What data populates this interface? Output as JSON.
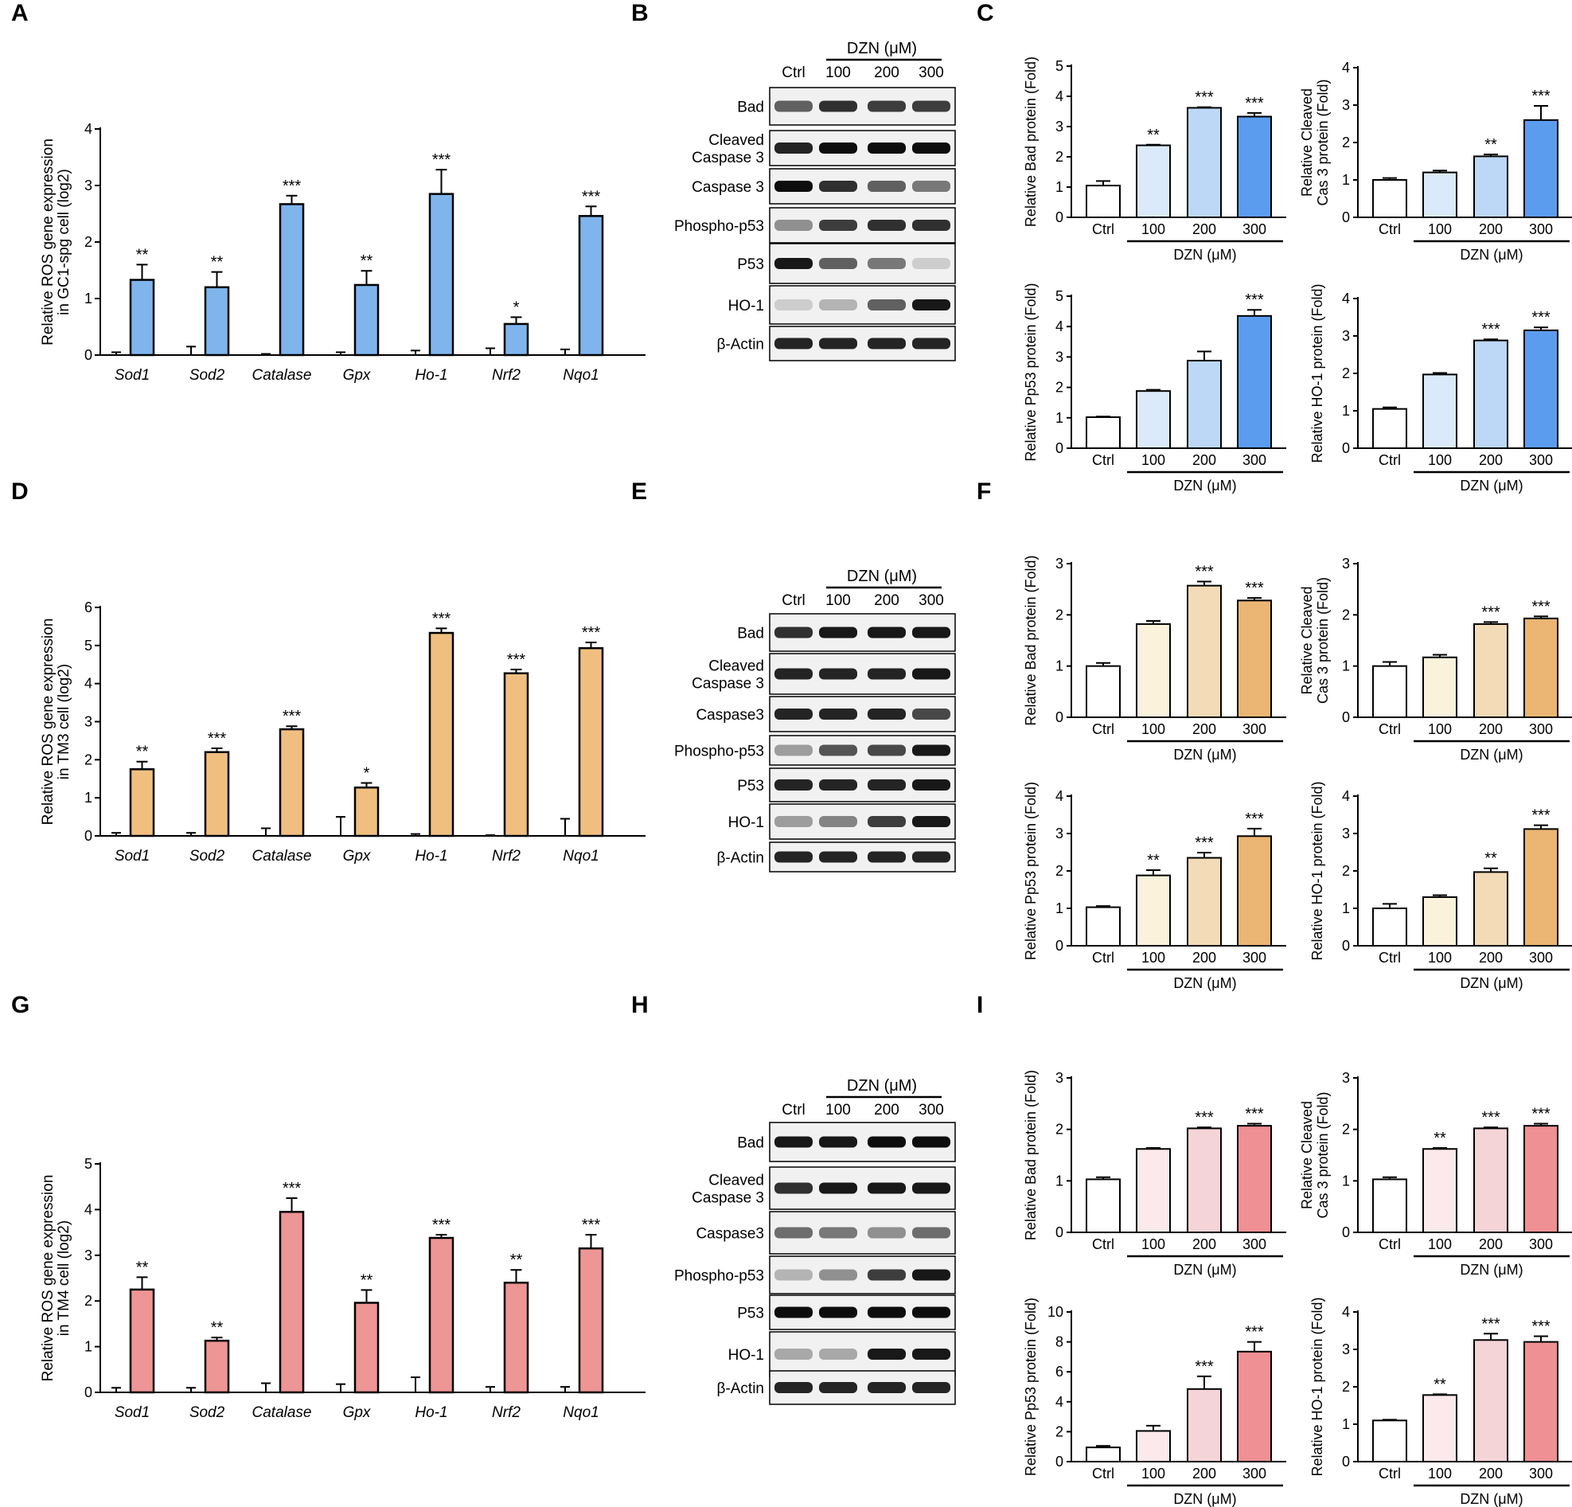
{
  "panel_letters": [
    "A",
    "B",
    "C",
    "D",
    "E",
    "F",
    "G",
    "H",
    "I"
  ],
  "colors": {
    "gc1": "#7fb5ec",
    "tm3": "#f0bf80",
    "tm4": "#ee9595",
    "gc1_scale": [
      "#ffffff",
      "#dbeafa",
      "#bcd8f6",
      "#5b9cef"
    ],
    "tm3_scale": [
      "#ffffff",
      "#fbf2dc",
      "#f2dbb6",
      "#ebb573"
    ],
    "tm4_scale": [
      "#ffffff",
      "#fbe9eb",
      "#f5d4d8",
      "#ee9094"
    ]
  },
  "common": {
    "genes": [
      "Sod1",
      "Sod2",
      "Catalase",
      "Gpx",
      "Ho-1",
      "Nrf2",
      "Nqo1"
    ],
    "conc_labels": [
      "Ctrl",
      "100",
      "200",
      "300"
    ],
    "dzn_label": "DZN (μM)"
  },
  "blots": [
    {
      "id": "B",
      "rows": [
        "Bad",
        "Cleaved\nCaspase 3",
        "Caspase 3",
        "Phospho-p53",
        "P53",
        "HO-1",
        "β-Actin"
      ]
    },
    {
      "id": "E",
      "rows": [
        "Bad",
        "Cleaved\nCaspase 3",
        "Caspase3",
        "Phospho-p53",
        "P53",
        "HO-1",
        "β-Actin"
      ]
    },
    {
      "id": "H",
      "rows": [
        "Bad",
        "Cleaved\nCaspase 3",
        "Caspase3",
        "Phospho-p53",
        "P53",
        "HO-1",
        "β-Actin"
      ]
    }
  ],
  "chart_data": [
    {
      "id": "A",
      "type": "bar",
      "ylabel": "Relative  ROS gene expression\nin GC1-spg cell (log2)",
      "ylim": [
        0,
        4
      ],
      "yticks": [
        0,
        1,
        2,
        3,
        4
      ],
      "categories": [
        "Sod1",
        "Sod2",
        "Catalase",
        "Gpx",
        "Ho-1",
        "Nrf2",
        "Nqo1"
      ],
      "series": [
        {
          "name": "Ctrl",
          "values": [
            0.05,
            0.15,
            0.02,
            0.05,
            0.08,
            0.12,
            0.1
          ],
          "errors": [
            0,
            0,
            0,
            0,
            0,
            0,
            0
          ]
        },
        {
          "name": "DZN",
          "values": [
            1.33,
            1.2,
            2.67,
            1.24,
            2.85,
            0.55,
            2.46
          ],
          "errors": [
            0.27,
            0.27,
            0.15,
            0.25,
            0.43,
            0.12,
            0.17
          ]
        }
      ],
      "significance": [
        "**",
        "**",
        "***",
        "**",
        "***",
        "*",
        "***"
      ]
    },
    {
      "id": "C1",
      "type": "bar",
      "ylabel": "Relative Bad protein (Fold)",
      "ylim": [
        0,
        5
      ],
      "yticks": [
        0,
        1,
        2,
        3,
        4,
        5
      ],
      "categories": [
        "Ctrl",
        "100",
        "200",
        "300"
      ],
      "values": [
        1.05,
        2.38,
        3.62,
        3.33
      ],
      "errors": [
        0.15,
        0.02,
        0.02,
        0.12
      ],
      "significance": [
        "",
        "**",
        "***",
        "***"
      ]
    },
    {
      "id": "C2",
      "type": "bar",
      "ylabel": "Relative Cleaved\nCas 3 protein (Fold)",
      "ylim": [
        0,
        4
      ],
      "yticks": [
        0,
        1,
        2,
        3,
        4
      ],
      "categories": [
        "Ctrl",
        "100",
        "200",
        "300"
      ],
      "values": [
        1.0,
        1.2,
        1.63,
        2.6
      ],
      "errors": [
        0.05,
        0.05,
        0.05,
        0.38
      ],
      "significance": [
        "",
        "",
        "**",
        "***"
      ]
    },
    {
      "id": "C3",
      "type": "bar",
      "ylabel": "Relative Pp53 protein (Fold)",
      "ylim": [
        0,
        5
      ],
      "yticks": [
        0,
        1,
        2,
        3,
        4,
        5
      ],
      "categories": [
        "Ctrl",
        "100",
        "200",
        "300"
      ],
      "values": [
        1.02,
        1.88,
        2.88,
        4.35
      ],
      "errors": [
        0.02,
        0.04,
        0.3,
        0.2
      ],
      "significance": [
        "",
        "",
        "",
        "***"
      ]
    },
    {
      "id": "C4",
      "type": "bar",
      "ylabel": "Relative HO-1 protein (Fold)",
      "ylim": [
        0,
        4
      ],
      "yticks": [
        0,
        1,
        2,
        3,
        4
      ],
      "categories": [
        "Ctrl",
        "100",
        "200",
        "300"
      ],
      "values": [
        1.05,
        1.97,
        2.88,
        3.15
      ],
      "errors": [
        0.04,
        0.04,
        0.03,
        0.08
      ],
      "significance": [
        "",
        "",
        "***",
        "***"
      ]
    },
    {
      "id": "D",
      "type": "bar",
      "ylabel": "Relative  ROS gene expression\nin TM3 cell (log2)",
      "ylim": [
        0,
        6
      ],
      "yticks": [
        0,
        1,
        2,
        3,
        4,
        5,
        6
      ],
      "categories": [
        "Sod1",
        "Sod2",
        "Catalase",
        "Gpx",
        "Ho-1",
        "Nrf2",
        "Nqo1"
      ],
      "series": [
        {
          "name": "Ctrl",
          "values": [
            0.08,
            0.08,
            0.2,
            0.5,
            0.05,
            0.02,
            0.45
          ],
          "errors": [
            0,
            0,
            0,
            0,
            0,
            0,
            0
          ]
        },
        {
          "name": "DZN",
          "values": [
            1.75,
            2.2,
            2.8,
            1.27,
            5.33,
            4.27,
            4.93
          ],
          "errors": [
            0.2,
            0.1,
            0.08,
            0.12,
            0.12,
            0.1,
            0.15
          ]
        }
      ],
      "significance": [
        "**",
        "***",
        "***",
        "*",
        "***",
        "***",
        "***"
      ]
    },
    {
      "id": "F1",
      "type": "bar",
      "ylabel": "Relative Bad protein (Fold)",
      "ylim": [
        0,
        3
      ],
      "yticks": [
        0,
        1,
        2,
        3
      ],
      "categories": [
        "Ctrl",
        "100",
        "200",
        "300"
      ],
      "values": [
        1.0,
        1.82,
        2.57,
        2.28
      ],
      "errors": [
        0.06,
        0.06,
        0.08,
        0.05
      ],
      "significance": [
        "",
        "",
        "***",
        "***"
      ]
    },
    {
      "id": "F2",
      "type": "bar",
      "ylabel": "Relative Cleaved\nCas 3 protein (Fold)",
      "ylim": [
        0,
        3
      ],
      "yticks": [
        0,
        1,
        2,
        3
      ],
      "categories": [
        "Ctrl",
        "100",
        "200",
        "300"
      ],
      "values": [
        1.0,
        1.17,
        1.82,
        1.93
      ],
      "errors": [
        0.08,
        0.05,
        0.04,
        0.04
      ],
      "significance": [
        "",
        "",
        "***",
        "***"
      ]
    },
    {
      "id": "F3",
      "type": "bar",
      "ylabel": "Relative Pp53 protein (Fold)",
      "ylim": [
        0,
        4
      ],
      "yticks": [
        0,
        1,
        2,
        3,
        4
      ],
      "categories": [
        "Ctrl",
        "100",
        "200",
        "300"
      ],
      "values": [
        1.03,
        1.88,
        2.35,
        2.93
      ],
      "errors": [
        0.03,
        0.14,
        0.14,
        0.2
      ],
      "significance": [
        "",
        "**",
        "***",
        "***"
      ]
    },
    {
      "id": "F4",
      "type": "bar",
      "ylabel": "Relative HO-1 protein (Fold)",
      "ylim": [
        0,
        4
      ],
      "yticks": [
        0,
        1,
        2,
        3,
        4
      ],
      "categories": [
        "Ctrl",
        "100",
        "200",
        "300"
      ],
      "values": [
        1.0,
        1.3,
        1.97,
        3.12
      ],
      "errors": [
        0.12,
        0.05,
        0.1,
        0.1
      ],
      "significance": [
        "",
        "",
        "**",
        "***"
      ]
    },
    {
      "id": "G",
      "type": "bar",
      "ylabel": "Relative  ROS gene expression\nin TM4 cell (log2)",
      "ylim": [
        0,
        5
      ],
      "yticks": [
        0,
        1,
        2,
        3,
        4,
        5
      ],
      "categories": [
        "Sod1",
        "Sod2",
        "Catalase",
        "Gpx",
        "Ho-1",
        "Nrf2",
        "Nqo1"
      ],
      "series": [
        {
          "name": "Ctrl",
          "values": [
            0.1,
            0.1,
            0.2,
            0.18,
            0.33,
            0.12,
            0.12
          ],
          "errors": [
            0,
            0,
            0,
            0,
            0,
            0,
            0
          ]
        },
        {
          "name": "DZN",
          "values": [
            2.25,
            1.13,
            3.95,
            1.96,
            3.38,
            2.4,
            3.15
          ],
          "errors": [
            0.27,
            0.07,
            0.3,
            0.28,
            0.07,
            0.28,
            0.3
          ]
        }
      ],
      "significance": [
        "**",
        "**",
        "***",
        "**",
        "***",
        "**",
        "***"
      ]
    },
    {
      "id": "I1",
      "type": "bar",
      "ylabel": "Relative Bad protein (Fold)",
      "ylim": [
        0,
        3
      ],
      "yticks": [
        0,
        1,
        2,
        3
      ],
      "categories": [
        "Ctrl",
        "100",
        "200",
        "300"
      ],
      "values": [
        1.03,
        1.62,
        2.02,
        2.07
      ],
      "errors": [
        0.04,
        0.02,
        0.02,
        0.04
      ],
      "significance": [
        "",
        "",
        "***",
        "***"
      ]
    },
    {
      "id": "I2",
      "type": "bar",
      "ylabel": "Relative Cleaved\nCas 3 protein (Fold)",
      "ylim": [
        0,
        3
      ],
      "yticks": [
        0,
        1,
        2,
        3
      ],
      "categories": [
        "Ctrl",
        "100",
        "200",
        "300"
      ],
      "values": [
        1.03,
        1.62,
        2.02,
        2.07
      ],
      "errors": [
        0.04,
        0.02,
        0.02,
        0.04
      ],
      "significance": [
        "",
        "**",
        "***",
        "***"
      ]
    },
    {
      "id": "I3",
      "type": "bar",
      "ylabel": "Relative Pp53 protein (Fold)",
      "ylim": [
        0,
        10
      ],
      "yticks": [
        0,
        2,
        4,
        6,
        8,
        10
      ],
      "categories": [
        "Ctrl",
        "100",
        "200",
        "300"
      ],
      "values": [
        0.95,
        2.05,
        4.85,
        7.35
      ],
      "errors": [
        0.1,
        0.35,
        0.85,
        0.65
      ],
      "significance": [
        "",
        "",
        "***",
        "***"
      ]
    },
    {
      "id": "I4",
      "type": "bar",
      "ylabel": "Relative HO-1 protein (Fold)",
      "ylim": [
        0,
        4
      ],
      "yticks": [
        0,
        1,
        2,
        3,
        4
      ],
      "categories": [
        "Ctrl",
        "100",
        "200",
        "300"
      ],
      "values": [
        1.1,
        1.78,
        3.25,
        3.2
      ],
      "errors": [
        0.02,
        0.02,
        0.17,
        0.15
      ],
      "significance": [
        "",
        "**",
        "***",
        "***"
      ]
    }
  ]
}
